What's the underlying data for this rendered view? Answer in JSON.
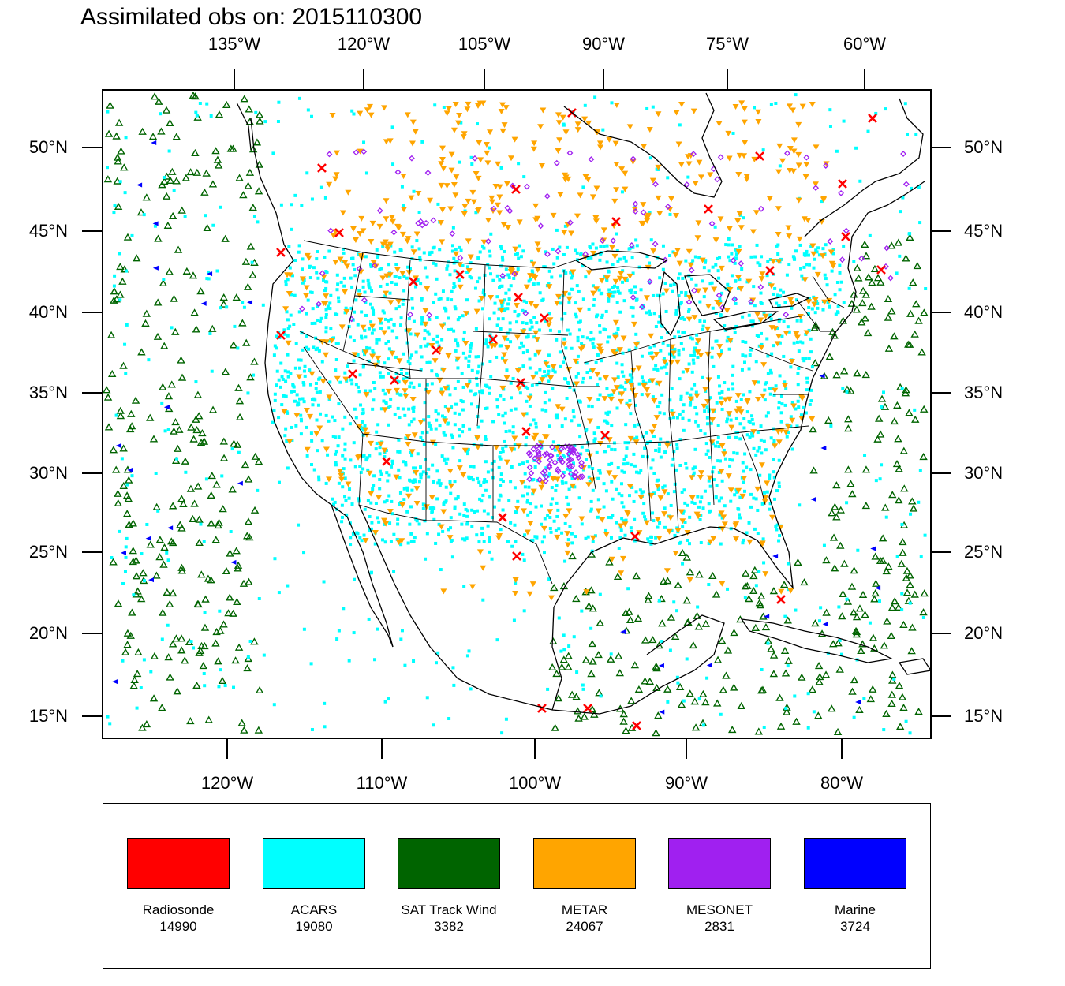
{
  "title": "Assimilated obs on: 2015110300",
  "axes": {
    "top_lon_labels": [
      "135°W",
      "120°W",
      "105°W",
      "90°W",
      "75°W",
      "60°W"
    ],
    "bottom_lon_labels": [
      "120°W",
      "110°W",
      "100°W",
      "90°W",
      "80°W"
    ],
    "lat_labels": [
      "50°N",
      "45°N",
      "40°N",
      "35°N",
      "30°N",
      "25°N",
      "20°N",
      "15°N"
    ]
  },
  "legend": [
    {
      "name": "Radiosonde",
      "count": "14990",
      "color": "#ff0000",
      "marker": "x-cross"
    },
    {
      "name": "ACARS",
      "count": "19080",
      "color": "#00ffff",
      "marker": "square-dot"
    },
    {
      "name": "SAT Track Wind",
      "count": "3382",
      "color": "#006400",
      "marker": "open-triangle"
    },
    {
      "name": "METAR",
      "count": "24067",
      "color": "#ffa500",
      "marker": "down-triangle"
    },
    {
      "name": "MESONET",
      "count": "2831",
      "color": "#a020f0",
      "marker": "diamond"
    },
    {
      "name": "Marine",
      "count": "3724",
      "color": "#0000ff",
      "marker": "left-triangle"
    }
  ],
  "map": {
    "projection": "Lambert conformal (approx)",
    "extent": {
      "lon_min": -128,
      "lon_max": -55,
      "lat_min": 14,
      "lat_max": 53
    },
    "frame_color": "#000000"
  }
}
